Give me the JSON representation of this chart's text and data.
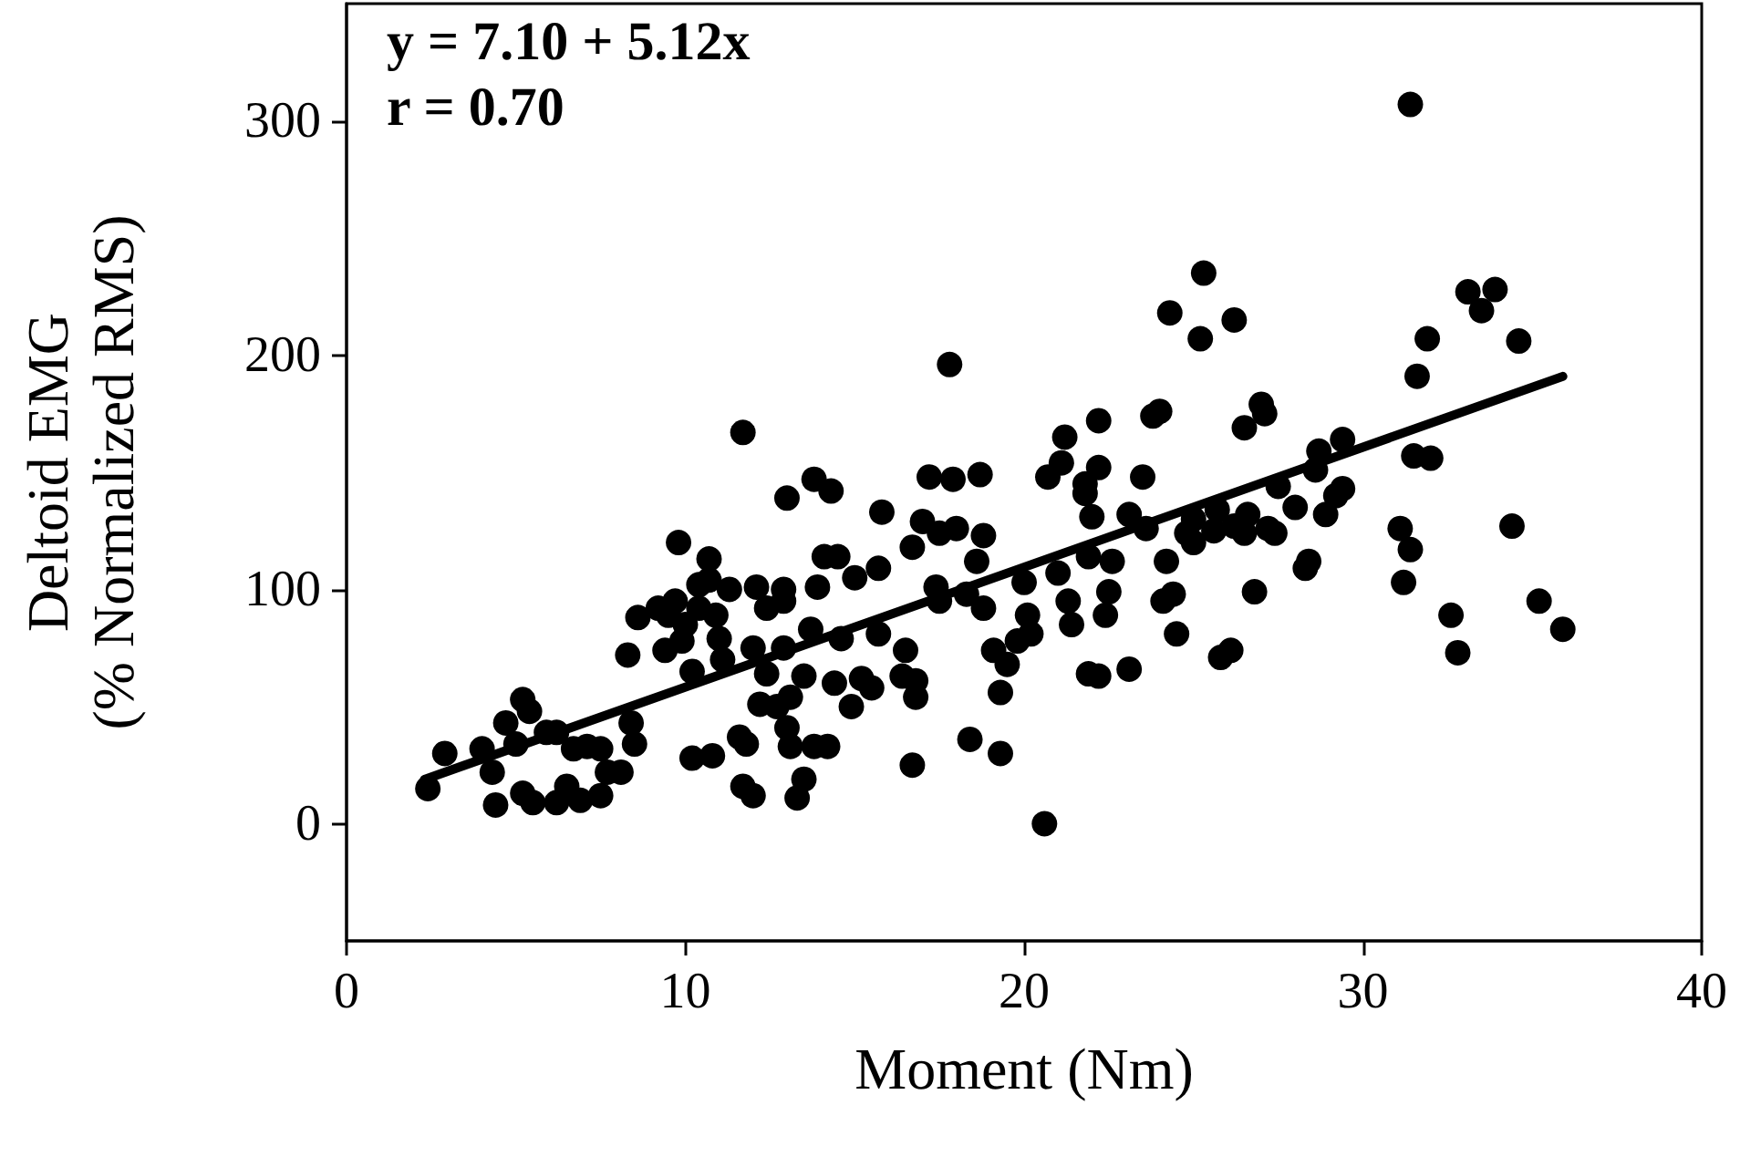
{
  "chart_data": {
    "type": "scatter",
    "xlabel": "Moment (Nm)",
    "ylabel": "Deltoid EMG\n(% Normalized RMS)",
    "annotations": [
      "y = 7.10 + 5.12x",
      "r = 0.70"
    ],
    "xlim": [
      0,
      40
    ],
    "xticks": [
      0,
      10,
      20,
      30,
      40
    ],
    "ylim": [
      -50,
      350
    ],
    "yticks": [
      0,
      100,
      200,
      300
    ],
    "grid": false,
    "marker": "circle",
    "series": [
      {
        "color": "#000000",
        "x": [
          2.4,
          2.9,
          4.0,
          4.3,
          4.4,
          4.7,
          5.0,
          5.2,
          5.4,
          5.2,
          5.5,
          5.9,
          6.2,
          6.2,
          6.5,
          6.9,
          6.7,
          7.1,
          7.5,
          7.7,
          7.5,
          8.1,
          8.4,
          8.5,
          8.3,
          8.6,
          9.2,
          9.5,
          9.7,
          9.8,
          9.4,
          9.9,
          10.0,
          10.2,
          10.4,
          10.4,
          10.7,
          10.2,
          10.8,
          10.7,
          10.9,
          11.0,
          11.1,
          11.3,
          11.6,
          11.7,
          11.7,
          11.8,
          12.0,
          12.0,
          12.1,
          12.2,
          12.4,
          12.4,
          12.7,
          12.9,
          12.9,
          13.1,
          13.0,
          12.9,
          13.0,
          13.1,
          13.3,
          13.5,
          13.5,
          13.7,
          13.8,
          13.8,
          13.9,
          14.2,
          14.1,
          14.3,
          14.4,
          14.5,
          14.6,
          14.9,
          15.2,
          15.0,
          15.5,
          15.7,
          15.7,
          15.8,
          16.4,
          16.5,
          16.7,
          16.8,
          16.8,
          16.7,
          17.0,
          17.8,
          17.2,
          17.5,
          17.4,
          17.5,
          17.9,
          18.0,
          18.3,
          18.4,
          18.6,
          18.7,
          18.8,
          18.8,
          19.1,
          19.3,
          19.3,
          19.5,
          19.8,
          20.0,
          20.1,
          20.2,
          20.6,
          20.7,
          21.0,
          21.1,
          21.2,
          21.3,
          21.4,
          21.8,
          21.8,
          21.9,
          21.9,
          22.0,
          22.2,
          22.2,
          22.2,
          22.5,
          22.4,
          22.6,
          23.1,
          23.1,
          23.5,
          23.6,
          23.8,
          24.0,
          24.1,
          24.2,
          24.4,
          24.3,
          24.5,
          24.8,
          25.0,
          25.0,
          25.2,
          25.3,
          25.6,
          25.7,
          25.8,
          26.1,
          26.2,
          26.2,
          26.5,
          26.5,
          26.6,
          26.8,
          27.0,
          27.1,
          27.2,
          27.4,
          27.5,
          28.0,
          28.3,
          28.4,
          28.6,
          28.7,
          28.9,
          29.2,
          29.4,
          29.4,
          31.1,
          31.2,
          31.4,
          31.4,
          31.5,
          31.6,
          31.9,
          32.0,
          32.6,
          32.8,
          33.1,
          33.5,
          33.9,
          34.4,
          34.6,
          35.2,
          35.9
        ],
        "values": [
          15,
          30,
          32,
          22,
          8,
          43,
          34,
          53,
          48,
          13,
          9,
          39,
          39,
          9,
          16,
          10,
          32,
          33,
          32,
          22,
          12,
          22,
          43,
          34,
          72,
          88,
          92,
          89,
          95,
          120,
          74,
          78,
          85,
          65,
          92,
          102,
          104,
          28,
          29,
          113,
          89,
          79,
          70,
          100,
          37,
          167,
          16,
          34,
          75,
          12,
          101,
          51,
          92,
          64,
          50,
          100,
          75,
          54,
          41,
          95,
          139,
          33,
          11,
          19,
          63,
          83,
          147,
          33,
          101,
          33,
          114,
          142,
          60,
          114,
          79,
          50,
          62,
          105,
          58,
          109,
          81,
          133,
          63,
          74,
          25,
          54,
          61,
          118,
          129,
          196,
          148,
          124,
          101,
          95,
          147,
          126,
          98,
          36,
          112,
          149,
          123,
          92,
          74,
          30,
          56,
          68,
          78,
          103,
          89,
          81,
          0,
          148,
          107,
          154,
          165,
          95,
          85,
          141,
          145,
          114,
          64,
          131,
          152,
          172,
          63,
          99,
          89,
          112,
          66,
          132,
          148,
          126,
          174,
          176,
          95,
          112,
          98,
          218,
          81,
          124,
          130,
          120,
          207,
          235,
          125,
          134,
          71,
          74,
          127,
          215,
          169,
          124,
          132,
          99,
          179,
          175,
          126,
          124,
          144,
          135,
          109,
          112,
          151,
          159,
          132,
          140,
          143,
          164,
          126,
          103,
          117,
          307,
          157,
          191,
          207,
          156,
          89,
          73,
          227,
          219,
          228,
          127,
          206,
          95,
          83
        ]
      },
      {
        "type": "line",
        "color": "#000000",
        "marker": "none",
        "x": [
          2.3,
          35.9
        ],
        "values": [
          18.9,
          190.9
        ]
      }
    ]
  }
}
